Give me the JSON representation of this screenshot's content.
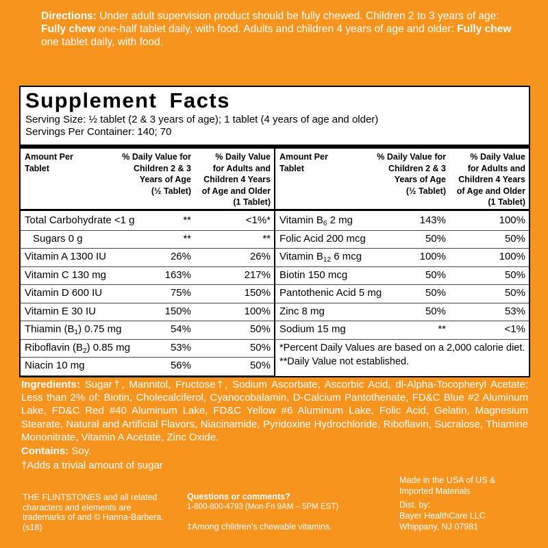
{
  "directions": [
    "Directions:",
    "Under adult supervision product should be fully chewed. Children 2 to 3 years of age:",
    "Fully chew",
    "one-half tablet daily, with food. Adults and children 4 years of age and older:",
    "Fully chew",
    "one tablet daily, with food."
  ],
  "facts": {
    "title": "Supplement Facts",
    "serving": [
      "Serving Size:  ½ tablet (2 & 3 years of age); 1 tablet (4 years of age and older)",
      "Servings Per Container: 140; 70"
    ],
    "tables": [
      {
        "headers": [
          [
            "Amount Per",
            "Tablet"
          ],
          [
            "% Daily Value for",
            "Children 2 & 3",
            "Years of Age",
            "(½ Tablet)"
          ],
          [
            "% Daily Value",
            "for Adults and",
            "Children 4 Years",
            "of Age and Older",
            "(1 Tablet)"
          ]
        ],
        "rows": [
          {
            "name": [
              "Total Carbohydrate <1 g"
            ],
            "child": "**",
            "adult": "<1%*"
          },
          {
            "name": [
              "Sugars 0 g"
            ],
            "child": "**",
            "adult": "**"
          },
          {
            "name": [
              "Vitamin A 1300 IU"
            ],
            "child": "26%",
            "adult": "26%"
          },
          {
            "name": [
              "Vitamin C 130 mg"
            ],
            "child": "163%",
            "adult": "217%"
          },
          {
            "name": [
              "Vitamin D 600 IU"
            ],
            "child": "75%",
            "adult": "150%"
          },
          {
            "name": [
              "Vitamin E 30 IU"
            ],
            "child": "150%",
            "adult": "100%"
          },
          {
            "name": [
              "Thiamin (B",
              "1",
              ") 0.75 mg"
            ],
            "child": "54%",
            "adult": "50%"
          },
          {
            "name": [
              "Riboflavin (B",
              "2",
              ") 0.85 mg"
            ],
            "child": "53%",
            "adult": "50%"
          },
          {
            "name": [
              "Niacin 10 mg"
            ],
            "child": "56%",
            "adult": "50%"
          }
        ]
      },
      {
        "headers": [
          [
            "Amount Per",
            "Tablet"
          ],
          [
            "% Daily Value for",
            "Children 2 & 3",
            "Years of Age",
            "(½ Tablet)"
          ],
          [
            "% Daily Value",
            "for Adults and",
            "Children 4 Years",
            "of Age and Older",
            "(1 Tablet)"
          ]
        ],
        "rows": [
          {
            "name": [
              "Vitamin B",
              "6",
              "2 mg"
            ],
            "child": "143%",
            "adult": "100%"
          },
          {
            "name": [
              "Folic Acid 200 mcg"
            ],
            "child": "50%",
            "adult": "50%"
          },
          {
            "name": [
              "Vitamin B",
              "12",
              "6 mcg"
            ],
            "child": "100%",
            "adult": "100%"
          },
          {
            "name": [
              "Biotin 150 mcg"
            ],
            "child": "50%",
            "adult": "50%"
          },
          {
            "name": [
              "Pantothenic Acid 5 mg"
            ],
            "child": "50%",
            "adult": "50%"
          },
          {
            "name": [
              "Zinc 8 mg"
            ],
            "child": "50%",
            "adult": "53%"
          },
          {
            "name": [
              "Sodium 15 mg"
            ],
            "child": "**",
            "adult": "<1%"
          }
        ],
        "footnotes": [
          "*Percent Daily Values are based on a 2,000 calorie diet.",
          "**Daily Value not established."
        ]
      }
    ]
  },
  "ingredients": {
    "label": "Ingredients:",
    "text": "Sugar†, Mannitol, Fructose†, Sodium Ascorbate, Ascorbic Acid, dl-Alpha-Tocopheryl Acetate; Less than 2% of: Biotin, Cholecalciferol, Cyanocobalamin, D-Calcium Pantothenate, FD&C Blue #2 Aluminum Lake, FD&C Red #40 Aluminum Lake, FD&C Yellow #6 Aluminum Lake, Folic Acid, Gelatin, Magnesium Stearate, Natural and Artificial Flavors, Niacinamide, Pyridoxine Hydrochloride, Riboflavin, Sucralose, Thiamine Mononitrate, Vitamin A Acetate, Zinc Oxide."
  },
  "contains": {
    "label": "Contains:",
    "text": "Soy."
  },
  "sugar_note": "†Adds a trivial amount of sugar",
  "footer": {
    "trademark": [
      "THE FLINTSTONES and all related",
      "characters and elements are",
      "trademarks of and © Hanna-Barbera.",
      "(s18)"
    ],
    "contact": {
      "title": "Questions or comments?",
      "phone": "1-800-800-4793 (Mon-Fri 9AM – 5PM EST)",
      "note": "‡Among children’s chewable vitamins."
    },
    "distributor": [
      "Made in the USA of US &",
      "Imported Materials",
      "Dist. by:",
      "Bayer HealthCare LLC",
      "Whippany, NJ 07981"
    ]
  }
}
